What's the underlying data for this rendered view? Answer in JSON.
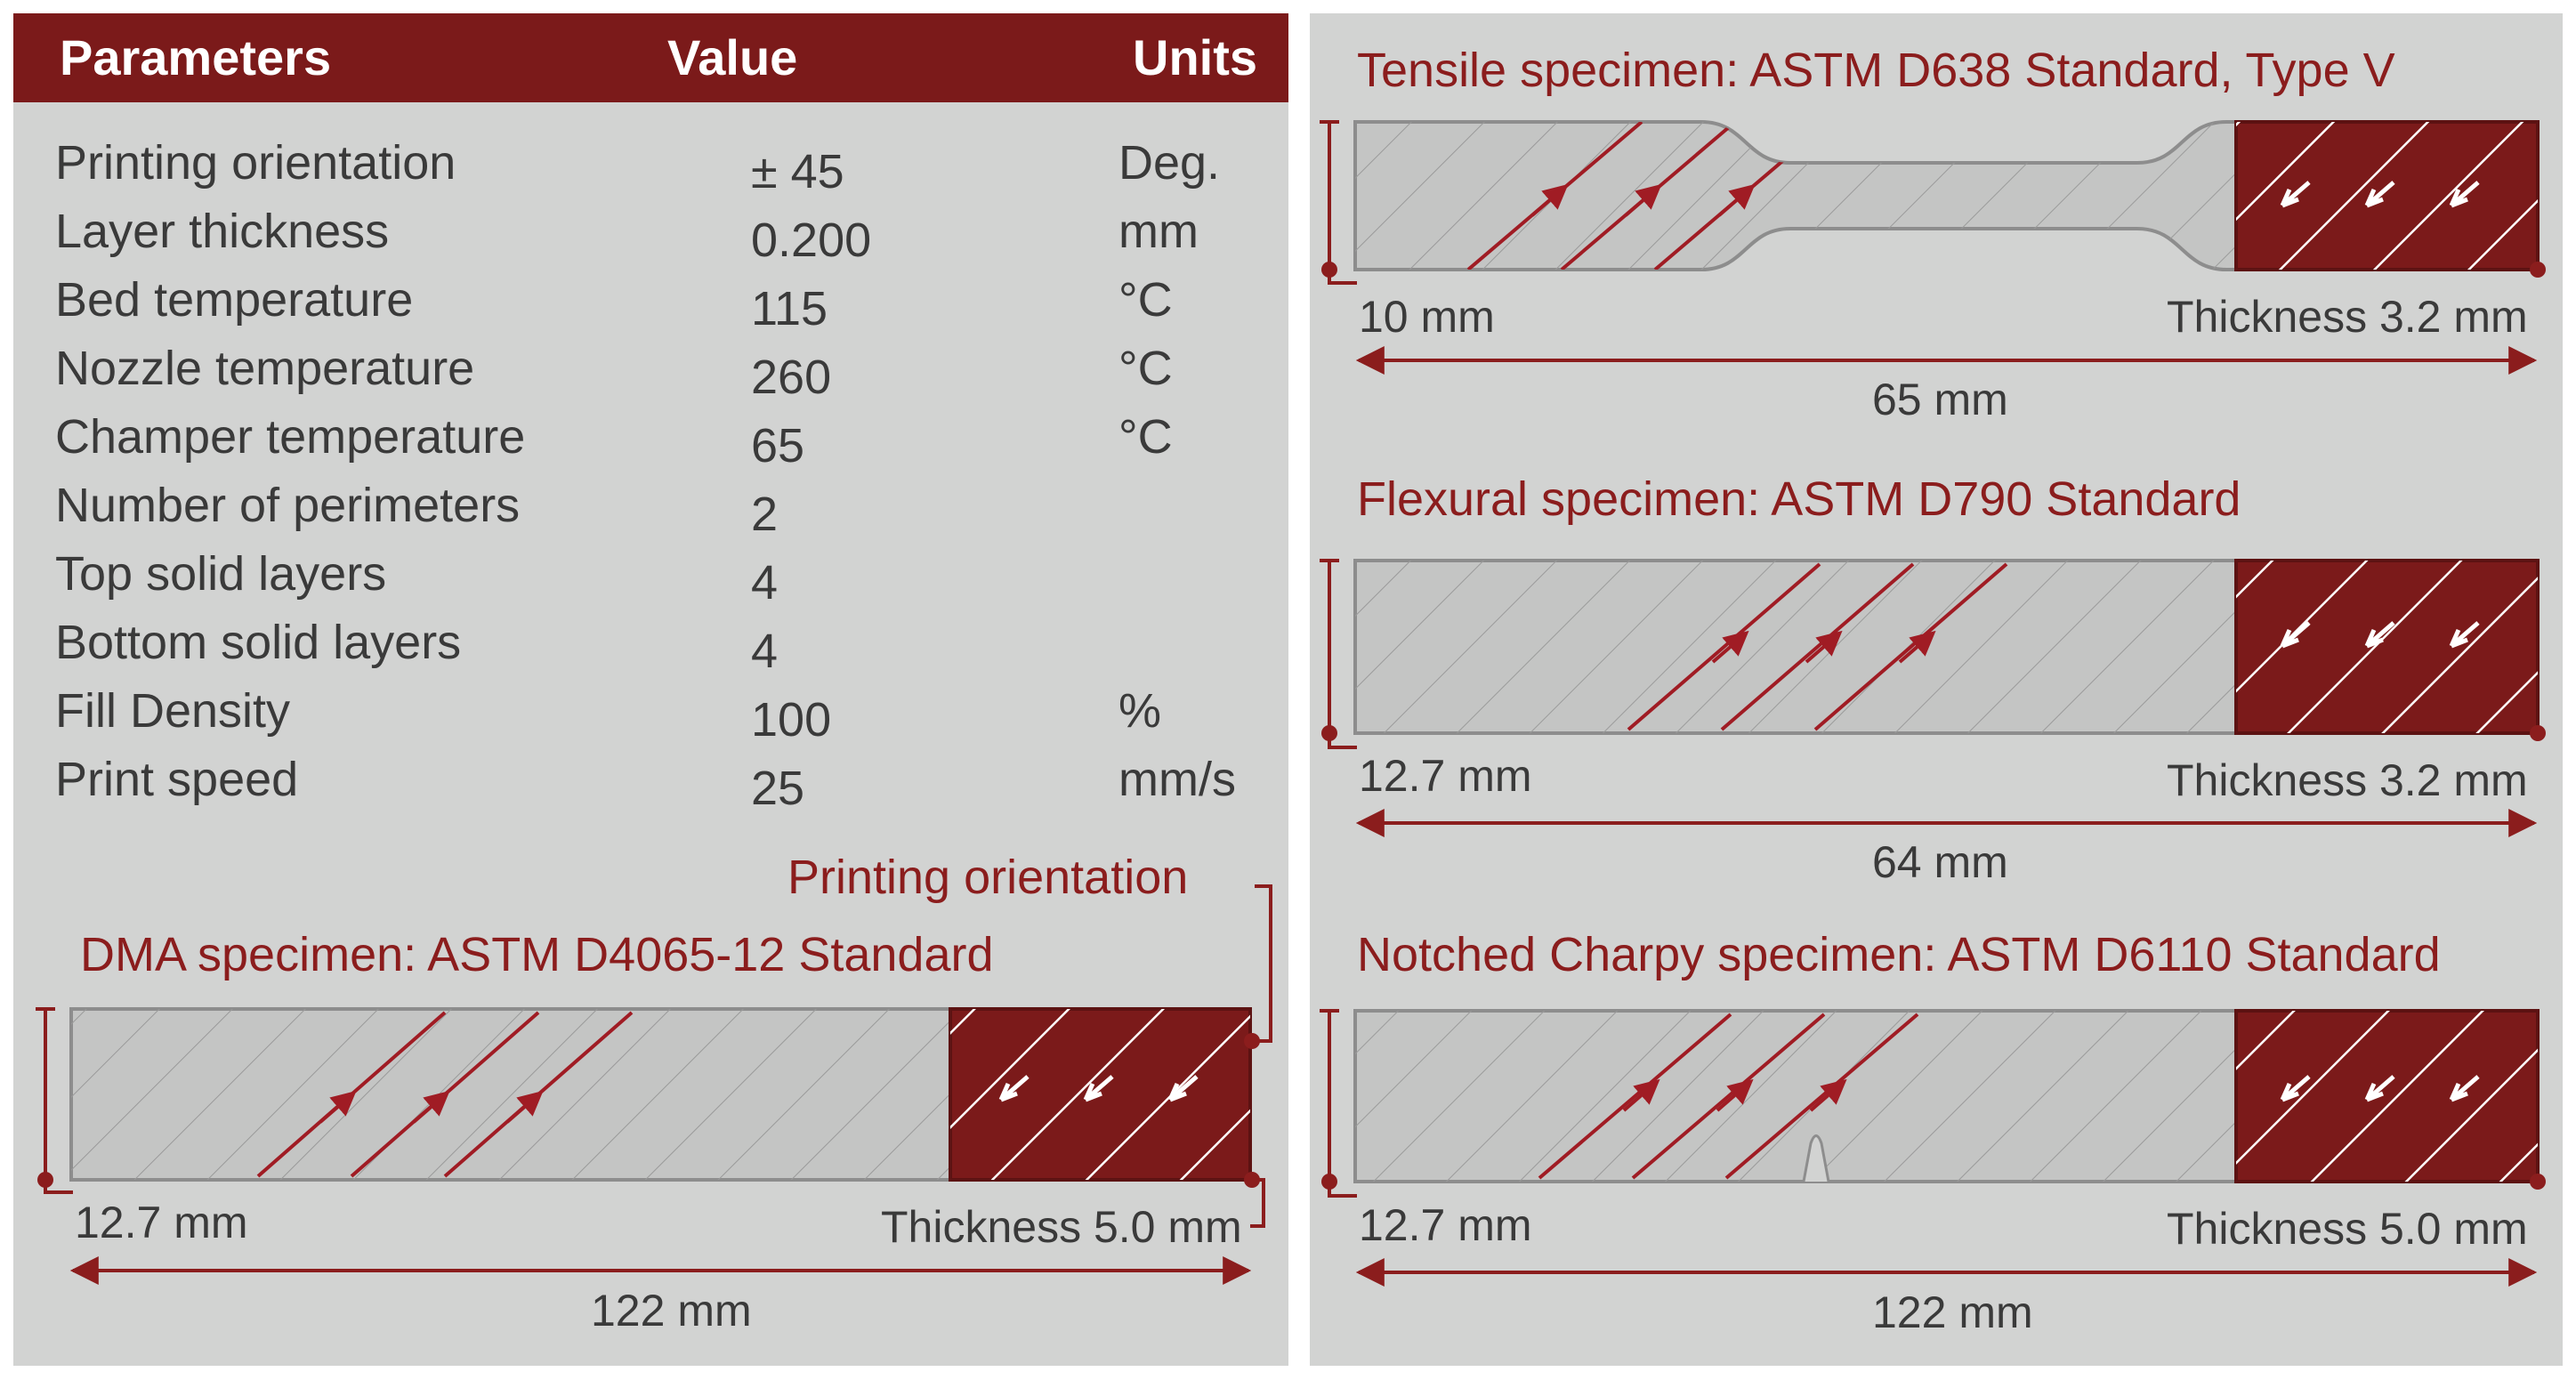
{
  "colors": {
    "accent": "#7b1a1a",
    "panel": "#d2d3d2",
    "hatch_line": "#9a9a9a",
    "arrow_red": "#a01c24"
  },
  "table": {
    "headers": {
      "parameter": "Parameters",
      "value": "Value",
      "units": "Units"
    },
    "rows": [
      {
        "parameter": "Printing orientation",
        "value": "± 45",
        "units": "Deg."
      },
      {
        "parameter": "Layer thickness",
        "value": "0.200",
        "units": "mm"
      },
      {
        "parameter": "Bed temperature",
        "value": "115",
        "units": "°C"
      },
      {
        "parameter": "Nozzle temperature",
        "value": "260",
        "units": "°C"
      },
      {
        "parameter": "Champer temperature",
        "value": "65",
        "units": "°C"
      },
      {
        "parameter": "Number of perimeters",
        "value": "2",
        "units": ""
      },
      {
        "parameter": "Top solid layers",
        "value": "4",
        "units": ""
      },
      {
        "parameter": "Bottom solid layers",
        "value": "4",
        "units": ""
      },
      {
        "parameter": "Fill Density",
        "value": "100",
        "units": "%"
      },
      {
        "parameter": "Print speed",
        "value": "25",
        "units": "mm/s"
      }
    ]
  },
  "dma": {
    "orientation_label": "Printing orientation",
    "title": "DMA specimen: ASTM D4065-12 Standard",
    "width_label": "12.7 mm",
    "thickness_label": "Thickness 5.0 mm",
    "length_label": "122 mm"
  },
  "tensile": {
    "title": "Tensile specimen: ASTM D638 Standard, Type V",
    "width_label": "10 mm",
    "thickness_label": "Thickness 3.2 mm",
    "length_label": "65 mm"
  },
  "flexural": {
    "title": "Flexural specimen: ASTM D790 Standard",
    "width_label": "12.7 mm",
    "thickness_label": "Thickness 3.2 mm",
    "length_label": "64 mm"
  },
  "charpy": {
    "title": "Notched Charpy specimen: ASTM D6110 Standard",
    "width_label": "12.7 mm",
    "thickness_label": "Thickness 5.0 mm",
    "length_label": "122 mm"
  }
}
